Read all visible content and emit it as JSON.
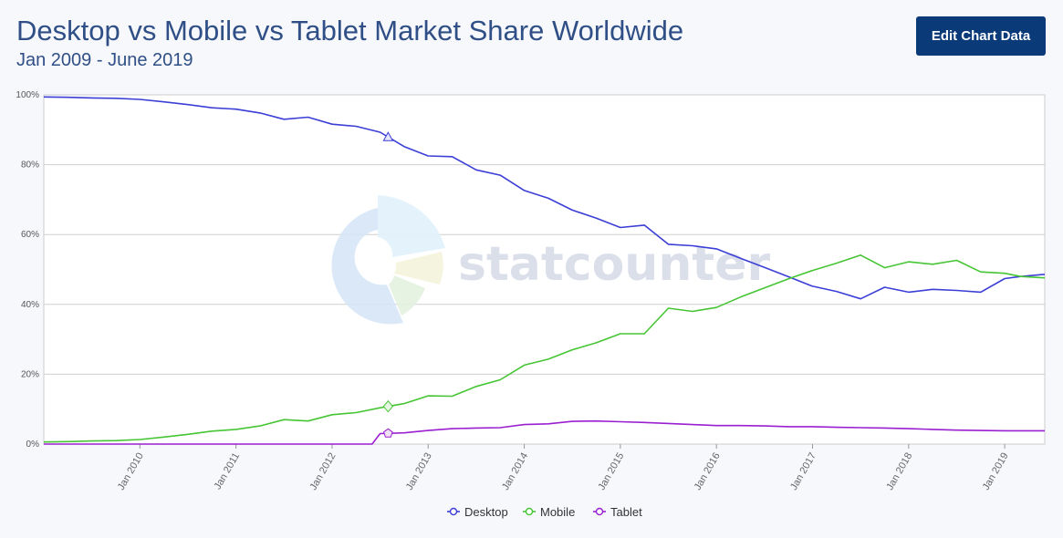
{
  "header": {
    "title": "Desktop vs Mobile vs Tablet Market Share Worldwide",
    "subtitle": "Jan 2009 - June 2019",
    "edit_button_label": "Edit Chart Data"
  },
  "watermark": {
    "text": "statcounter"
  },
  "chart_data": {
    "type": "line",
    "x_start": "2009-01",
    "x_end": "2019-06",
    "y_ticks": [
      "0%",
      "20%",
      "40%",
      "60%",
      "80%",
      "100%"
    ],
    "ylim": [
      0,
      100
    ],
    "x_tick_labels": [
      "Jan 2010",
      "Jan 2011",
      "Jan 2012",
      "Jan 2013",
      "Jan 2014",
      "Jan 2015",
      "Jan 2016",
      "Jan 2017",
      "Jan 2018",
      "Jan 2019"
    ],
    "grid": true,
    "legend_position": "bottom-center",
    "series": [
      {
        "name": "Desktop",
        "color": "#3b3fd6",
        "x": [
          "2009-01",
          "2009-04",
          "2009-07",
          "2009-10",
          "2010-01",
          "2010-04",
          "2010-07",
          "2010-10",
          "2011-01",
          "2011-04",
          "2011-07",
          "2011-10",
          "2012-01",
          "2012-04",
          "2012-07",
          "2012-10",
          "2013-01",
          "2013-04",
          "2013-07",
          "2013-10",
          "2014-01",
          "2014-04",
          "2014-07",
          "2014-10",
          "2015-01",
          "2015-04",
          "2015-07",
          "2015-10",
          "2016-01",
          "2016-04",
          "2016-07",
          "2016-10",
          "2017-01",
          "2017-04",
          "2017-07",
          "2017-10",
          "2018-01",
          "2018-04",
          "2018-07",
          "2018-10",
          "2019-01",
          "2019-03",
          "2019-06"
        ],
        "values": [
          99.4,
          99.3,
          99.1,
          99.0,
          98.7,
          98.0,
          97.2,
          96.3,
          95.9,
          94.8,
          93.0,
          93.6,
          91.6,
          91.0,
          89.3,
          85.2,
          82.5,
          82.3,
          78.5,
          77.0,
          72.6,
          70.4,
          67.0,
          64.7,
          62.0,
          62.7,
          57.2,
          56.8,
          55.9,
          53.2,
          50.6,
          47.9,
          45.2,
          43.7,
          41.6,
          44.9,
          43.5,
          44.3,
          44.0,
          43.5,
          47.4,
          48.0,
          48.6
        ]
      },
      {
        "name": "Mobile",
        "color": "#46c534",
        "x": [
          "2009-01",
          "2009-04",
          "2009-07",
          "2009-10",
          "2010-01",
          "2010-04",
          "2010-07",
          "2010-10",
          "2011-01",
          "2011-04",
          "2011-07",
          "2011-10",
          "2012-01",
          "2012-04",
          "2012-07",
          "2012-10",
          "2013-01",
          "2013-04",
          "2013-07",
          "2013-10",
          "2014-01",
          "2014-04",
          "2014-07",
          "2014-10",
          "2015-01",
          "2015-04",
          "2015-07",
          "2015-10",
          "2016-01",
          "2016-04",
          "2016-07",
          "2016-10",
          "2017-01",
          "2017-04",
          "2017-07",
          "2017-10",
          "2018-01",
          "2018-04",
          "2018-07",
          "2018-10",
          "2019-01",
          "2019-03",
          "2019-06"
        ],
        "values": [
          0.6,
          0.7,
          0.9,
          1.0,
          1.3,
          2.0,
          2.8,
          3.7,
          4.2,
          5.2,
          7.0,
          6.6,
          8.4,
          9.0,
          10.4,
          11.6,
          13.8,
          13.7,
          16.5,
          18.4,
          22.6,
          24.3,
          27.0,
          29.0,
          31.6,
          31.6,
          38.9,
          38.0,
          39.1,
          42.1,
          44.7,
          47.3,
          49.7,
          51.8,
          54.1,
          50.5,
          52.2,
          51.5,
          52.6,
          49.3,
          48.9,
          48.0,
          47.6
        ]
      },
      {
        "name": "Tablet",
        "color": "#9a1fd0",
        "x": [
          "2009-01",
          "2012-06",
          "2012-07",
          "2012-10",
          "2013-01",
          "2013-04",
          "2013-07",
          "2013-10",
          "2014-01",
          "2014-04",
          "2014-07",
          "2014-10",
          "2015-01",
          "2015-04",
          "2015-07",
          "2015-10",
          "2016-01",
          "2016-04",
          "2016-07",
          "2016-10",
          "2017-01",
          "2017-04",
          "2017-07",
          "2017-10",
          "2018-01",
          "2018-04",
          "2018-07",
          "2018-10",
          "2019-01",
          "2019-03",
          "2019-06"
        ],
        "values": [
          0,
          0,
          3.0,
          3.2,
          3.9,
          4.4,
          4.6,
          4.7,
          5.6,
          5.8,
          6.5,
          6.6,
          6.4,
          6.2,
          5.9,
          5.6,
          5.3,
          5.3,
          5.2,
          5.0,
          5.0,
          4.8,
          4.7,
          4.6,
          4.4,
          4.2,
          4.0,
          3.9,
          3.8,
          3.8,
          3.8
        ]
      }
    ]
  }
}
